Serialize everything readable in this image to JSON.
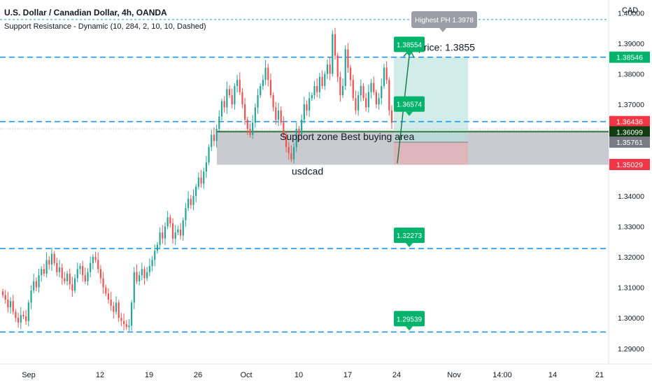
{
  "header": {
    "symbol_line": "U.S. Dollar / Canadian Dollar, 4h, OANDA",
    "indicator_line": "Support Resistance - Dynamic (10, 284, 2, 10, 10, Dashed)",
    "currency": "CAD"
  },
  "colors": {
    "up": "#26a69a",
    "down": "#ef5350",
    "dashed_level": "#2196f3",
    "support_zone": "#b2b5be",
    "target_zone": "#b2dfdb",
    "stop_zone": "#e4b0b4",
    "label_green": "#00b36b",
    "label_grey": "#9b9ea6",
    "label_red": "#f23645",
    "ma_line": "#006400"
  },
  "chart_data": {
    "type": "candlestick",
    "timeframe": "4h",
    "ylim": [
      1.2849,
      1.4042
    ],
    "x_ticks": [
      "Sep",
      "12",
      "19",
      "26",
      "Oct",
      "10",
      "17",
      "24",
      "Nov",
      "14:00",
      "14",
      "21"
    ],
    "y_ticks": [
      "1.40000",
      "1.39000",
      "1.38000",
      "1.37000",
      "1.34000",
      "1.33000",
      "1.32000",
      "1.31000",
      "1.30000",
      "1.29000"
    ],
    "price_labels": [
      {
        "text": "1.38546",
        "value": 1.38546,
        "color": "#00b36b"
      },
      {
        "text": "1.36436",
        "value": 1.36436,
        "color": "#f23645"
      },
      {
        "text": "1.36099",
        "value": 1.36099,
        "color": "#0f3d10"
      },
      {
        "text": "1.35761",
        "value": 1.35761,
        "color": "#787b86"
      },
      {
        "text": "1.35029",
        "value": 1.35029,
        "color": "#f23645"
      }
    ],
    "resistance_levels": [
      1.3978,
      1.38546,
      1.36436,
      1.32273,
      1.29539
    ],
    "level_markers": [
      {
        "text": "1.38554",
        "value": 1.38554
      },
      {
        "text": "1.36574",
        "value": 1.36574
      },
      {
        "text": "1.32273",
        "value": 1.32273
      },
      {
        "text": "1.29539",
        "value": 1.29539
      }
    ],
    "highest_ph_label": "Highest PH 1.3978",
    "support_zone": {
      "top": 1.3615,
      "bottom": 1.3502
    },
    "position": {
      "entry": 1.3576,
      "target": 1.3855,
      "stop": 1.3502
    },
    "ma_value": 1.36099,
    "annotations": {
      "target_price": "price: 1.3855",
      "support_text": "Support zone Best buying area",
      "symbol_text": "usdcad"
    },
    "candles_close": [
      1.3075,
      1.306,
      1.3035,
      1.3055,
      1.302,
      1.3,
      1.2985,
      1.301,
      1.3005,
      1.299,
      1.305,
      1.309,
      1.312,
      1.31,
      1.314,
      1.316,
      1.3145,
      1.319,
      1.3175,
      1.321,
      1.318,
      1.315,
      1.3165,
      1.313,
      1.312,
      1.3145,
      1.311,
      1.309,
      1.313,
      1.316,
      1.317,
      1.314,
      1.312,
      1.315,
      1.318,
      1.32,
      1.319,
      1.316,
      1.313,
      1.31,
      1.308,
      1.306,
      1.304,
      1.302,
      1.305,
      1.3,
      1.299,
      1.298,
      1.297,
      1.2975,
      1.305,
      1.315,
      1.312,
      1.314,
      1.316,
      1.313,
      1.315,
      1.317,
      1.319,
      1.322,
      1.324,
      1.328,
      1.326,
      1.33,
      1.333,
      1.331,
      1.326,
      1.328,
      1.329,
      1.327,
      1.332,
      1.336,
      1.339,
      1.337,
      1.34,
      1.343,
      1.346,
      1.344,
      1.348,
      1.351,
      1.356,
      1.36,
      1.358,
      1.362,
      1.366,
      1.371,
      1.369,
      1.375,
      1.373,
      1.37,
      1.376,
      1.378,
      1.374,
      1.37,
      1.365,
      1.362,
      1.36,
      1.364,
      1.369,
      1.373,
      1.376,
      1.378,
      1.382,
      1.378,
      1.373,
      1.369,
      1.365,
      1.368,
      1.364,
      1.36,
      1.356,
      1.354,
      1.352,
      1.356,
      1.362,
      1.36,
      1.365,
      1.37,
      1.368,
      1.372,
      1.373,
      1.376,
      1.374,
      1.379,
      1.376,
      1.38,
      1.383,
      1.38,
      1.393,
      1.386,
      1.379,
      1.373,
      1.376,
      1.388,
      1.382,
      1.378,
      1.372,
      1.368,
      1.373,
      1.376,
      1.372,
      1.369,
      1.374,
      1.377,
      1.374,
      1.37,
      1.372,
      1.376,
      1.382,
      1.378,
      1.368,
      1.364
    ]
  }
}
